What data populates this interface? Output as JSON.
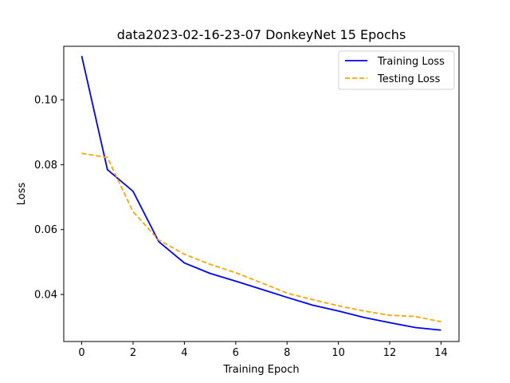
{
  "chart_data": {
    "type": "line",
    "title": "data2023-02-16-23-07 DonkeyNet 15 Epochs",
    "xlabel": "Training Epoch",
    "ylabel": "Loss",
    "xlim": [
      -0.7,
      14.7
    ],
    "ylim": [
      0.0255,
      0.1165
    ],
    "xticks": [
      0,
      2,
      4,
      6,
      8,
      10,
      12,
      14
    ],
    "yticks": [
      0.04,
      0.06,
      0.08,
      0.1
    ],
    "ytick_labels": [
      "0.04",
      "0.06",
      "0.08",
      "0.10"
    ],
    "grid": false,
    "legend_position": "upper right",
    "x": [
      0,
      1,
      2,
      3,
      4,
      5,
      6,
      7,
      8,
      9,
      10,
      11,
      12,
      13,
      14
    ],
    "series": [
      {
        "name": "Training Loss",
        "color": "#0000ff",
        "style": "solid",
        "values": [
          0.1135,
          0.0785,
          0.0718,
          0.0563,
          0.0497,
          0.0465,
          0.0441,
          0.0416,
          0.0391,
          0.0367,
          0.0349,
          0.0329,
          0.0313,
          0.0298,
          0.029
        ]
      },
      {
        "name": "Testing Loss",
        "color": "#ffa500",
        "style": "dashed",
        "values": [
          0.0835,
          0.0822,
          0.0655,
          0.0568,
          0.0524,
          0.0493,
          0.0467,
          0.0436,
          0.0404,
          0.0384,
          0.0365,
          0.0349,
          0.0336,
          0.0332,
          0.0316
        ]
      }
    ]
  }
}
